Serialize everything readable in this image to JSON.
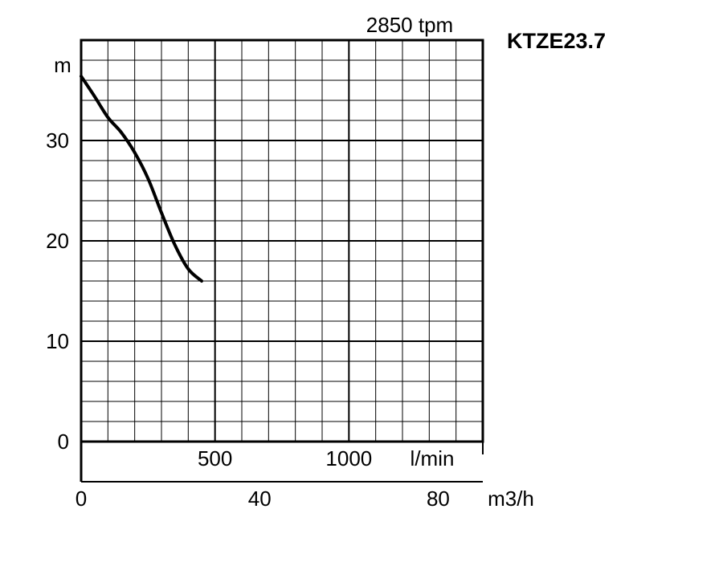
{
  "chart_data": {
    "type": "line",
    "title": "KTZE23.7",
    "subtitle": "2850 tpm",
    "ylabel": "m",
    "ylim": [
      0,
      40
    ],
    "y_ticks": [
      0,
      10,
      20,
      30
    ],
    "y_tick_labels": [
      "0",
      "10",
      "20",
      "30"
    ],
    "flow_lpm": {
      "xlim": [
        0,
        1500
      ],
      "tick_values": [
        500,
        1000
      ],
      "tick_labels": [
        "500",
        "1000"
      ],
      "unit": "l/min"
    },
    "flow_m3h": {
      "xlim": [
        0,
        90
      ],
      "tick_values": [
        0,
        40,
        80
      ],
      "tick_labels": [
        "0",
        "40",
        "80"
      ],
      "unit": "m3/h"
    },
    "grid": true,
    "series": [
      {
        "x_lpm": [
          0,
          50,
          100,
          150,
          200,
          250,
          300,
          350,
          400,
          450
        ],
        "y_m": [
          36.4,
          34.4,
          32.3,
          30.8,
          28.8,
          26.2,
          22.8,
          19.6,
          17.2,
          16.0
        ]
      }
    ]
  }
}
